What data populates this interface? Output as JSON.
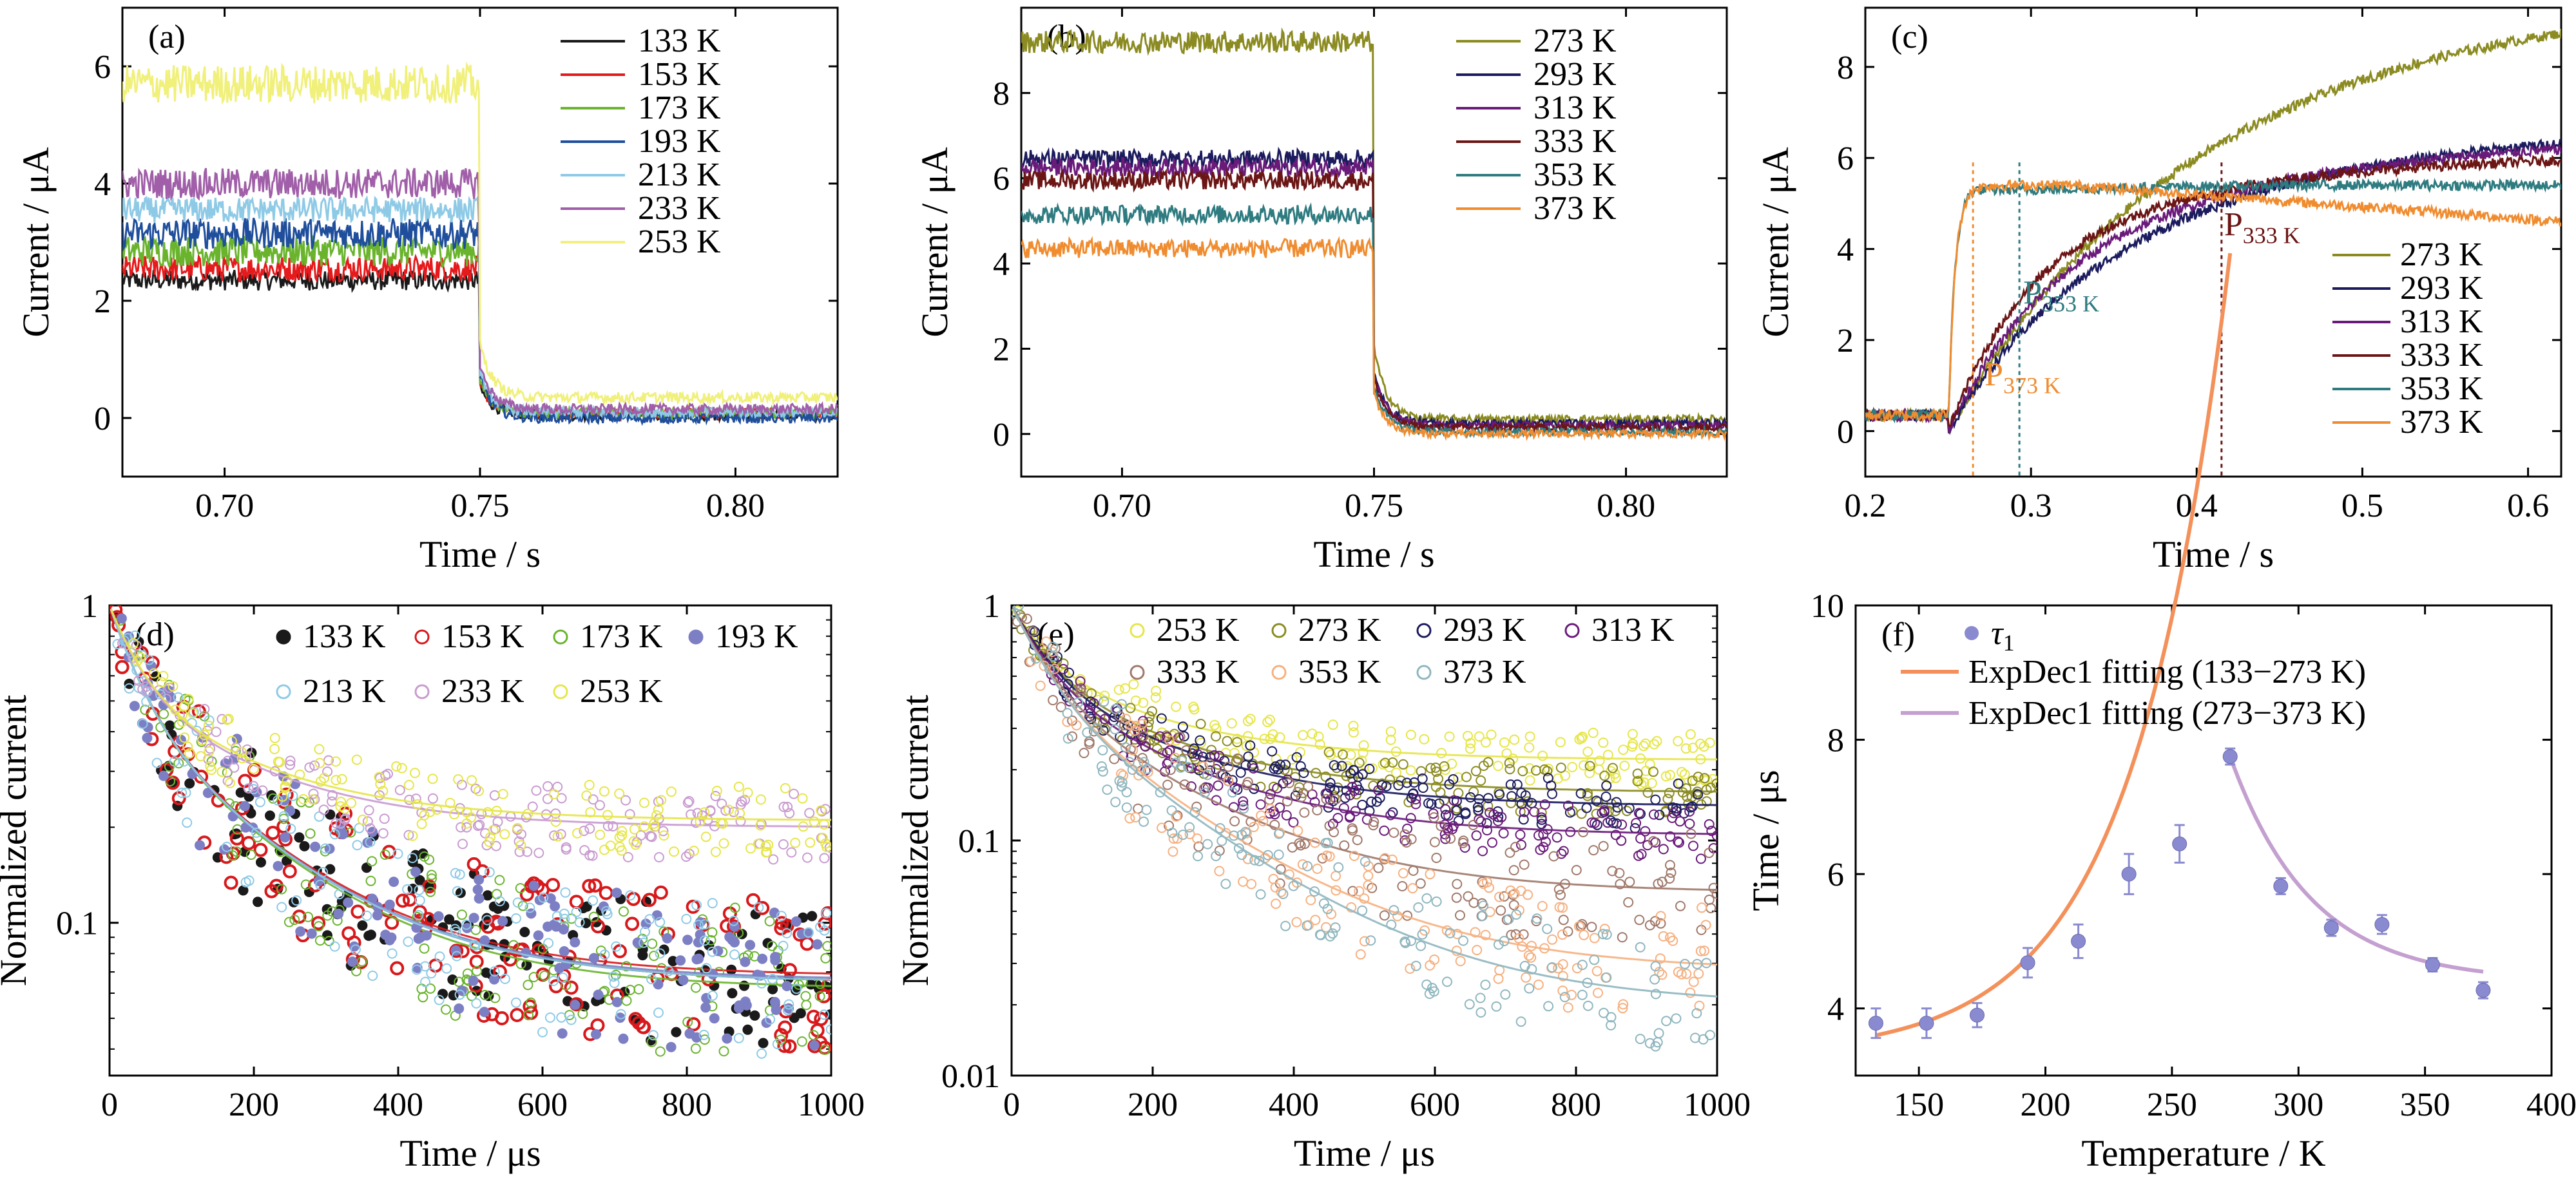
{
  "figure": {
    "panel_count": 6
  },
  "chart_data": [
    {
      "id": "a",
      "type": "line",
      "panel_label": "(a)",
      "xlabel": "Time / s",
      "ylabel": "Current / μA",
      "xlim": [
        0.68,
        0.82
      ],
      "ylim": [
        -1,
        7
      ],
      "x_ticks": [
        "0.70",
        "0.75",
        "0.80"
      ],
      "y_ticks": [
        "0",
        "2",
        "4",
        "6"
      ],
      "switch_time_s": 0.75,
      "series": [
        {
          "name": "133 K",
          "color": "#1a1a1a",
          "high": 2.35,
          "noise": 0.08,
          "tail": 0.05
        },
        {
          "name": "153 K",
          "color": "#e41a1c",
          "high": 2.55,
          "noise": 0.1,
          "tail": 0.08
        },
        {
          "name": "173 K",
          "color": "#6ab42d",
          "high": 2.85,
          "noise": 0.12,
          "tail": 0.08
        },
        {
          "name": "193 K",
          "color": "#1f4e9c",
          "high": 3.15,
          "noise": 0.12,
          "tail": 0.0
        },
        {
          "name": "213 K",
          "color": "#8ecae6",
          "high": 3.55,
          "noise": 0.1,
          "tail": 0.1
        },
        {
          "name": "233 K",
          "color": "#a05fa8",
          "high": 4.0,
          "noise": 0.12,
          "tail": 0.15
        },
        {
          "name": "253 K",
          "color": "#f0f07a",
          "high": 5.7,
          "noise": 0.15,
          "tail": 0.35
        }
      ]
    },
    {
      "id": "b",
      "type": "line",
      "panel_label": "(b)",
      "xlabel": "Time / s",
      "ylabel": "Current / μA",
      "xlim": [
        0.68,
        0.82
      ],
      "ylim": [
        -1,
        10
      ],
      "x_ticks": [
        "0.70",
        "0.75",
        "0.80"
      ],
      "y_ticks": [
        "0",
        "2",
        "4",
        "6",
        "8"
      ],
      "switch_time_s": 0.75,
      "series": [
        {
          "name": "273 K",
          "color": "#8b8b22",
          "high": 9.2,
          "noise": 0.12,
          "tail": 0.35
        },
        {
          "name": "293 K",
          "color": "#1b1b5e",
          "high": 6.45,
          "noise": 0.1,
          "tail": 0.25
        },
        {
          "name": "313 K",
          "color": "#6a1b7a",
          "high": 6.25,
          "noise": 0.1,
          "tail": 0.2
        },
        {
          "name": "333 K",
          "color": "#6b1515",
          "high": 5.95,
          "noise": 0.1,
          "tail": 0.15
        },
        {
          "name": "353 K",
          "color": "#2e7b80",
          "high": 5.15,
          "noise": 0.1,
          "tail": 0.05
        },
        {
          "name": "373 K",
          "color": "#f08c30",
          "high": 4.35,
          "noise": 0.1,
          "tail": 0.0
        }
      ]
    },
    {
      "id": "c",
      "type": "line",
      "panel_label": "(c)",
      "xlabel": "Time / s",
      "ylabel": "Current / μA",
      "xlim": [
        0.2,
        0.62
      ],
      "ylim": [
        -1,
        9.3
      ],
      "x_ticks": [
        "0.2",
        "0.3",
        "0.4",
        "0.5",
        "0.6"
      ],
      "y_ticks": [
        "0",
        "2",
        "4",
        "6",
        "8"
      ],
      "switch_time_s": 0.25,
      "baseline": 0.35,
      "series": [
        {
          "name": "273 K",
          "color": "#8b8b22",
          "end": 9.0
        },
        {
          "name": "293 K",
          "color": "#1b1b5e",
          "end": 6.35
        },
        {
          "name": "313 K",
          "color": "#6a1b7a",
          "end": 6.2
        },
        {
          "name": "333 K",
          "color": "#6b1515",
          "end": 5.95
        },
        {
          "name": "353 K",
          "color": "#2e7b80",
          "end": 5.5
        },
        {
          "name": "373 K",
          "color": "#f08c30",
          "end": 4.6
        }
      ],
      "annotations": [
        {
          "text": "P",
          "sub": "373 K",
          "x": 0.265,
          "color": "#f08c30"
        },
        {
          "text": "P",
          "sub": "353 K",
          "x": 0.293,
          "color": "#2e7b80"
        },
        {
          "text": "P",
          "sub": "333 K",
          "x": 0.415,
          "color": "#6b1515"
        }
      ]
    },
    {
      "id": "d",
      "type": "scatter",
      "panel_label": "(d)",
      "xlabel": "Time / μs",
      "ylabel": "Normalized current",
      "xlim": [
        0,
        1000
      ],
      "ylim": [
        0.033,
        1.0
      ],
      "yscale": "log",
      "x_ticks": [
        "0",
        "200",
        "400",
        "600",
        "800",
        "1000"
      ],
      "y_ticks": [
        {
          "v": 1,
          "label": "1"
        },
        {
          "v": 0.1,
          "label": "0.1"
        }
      ],
      "series": [
        {
          "name": "133 K",
          "color": "#1a1a1a",
          "marker": "filled",
          "plateau": 0.065
        },
        {
          "name": "153 K",
          "color": "#d7191c",
          "marker": "open-thick",
          "plateau": 0.068
        },
        {
          "name": "173 K",
          "color": "#6ab42d",
          "marker": "open",
          "plateau": 0.062
        },
        {
          "name": "193 K",
          "color": "#7d7fc4",
          "marker": "filled",
          "plateau": 0.066
        },
        {
          "name": "213 K",
          "color": "#8ecae6",
          "marker": "open",
          "plateau": 0.065
        },
        {
          "name": "233 K",
          "color": "#c99bd0",
          "marker": "open",
          "plateau": 0.2
        },
        {
          "name": "253 K",
          "color": "#e6e64a",
          "marker": "open",
          "plateau": 0.21
        }
      ]
    },
    {
      "id": "e",
      "type": "scatter",
      "panel_label": "(e)",
      "xlabel": "Time / μs",
      "ylabel": "Normalized current",
      "xlim": [
        0,
        1000
      ],
      "ylim": [
        0.01,
        1.0
      ],
      "yscale": "log",
      "x_ticks": [
        "0",
        "200",
        "400",
        "600",
        "800",
        "1000"
      ],
      "y_ticks": [
        {
          "v": 1,
          "label": "1"
        },
        {
          "v": 0.1,
          "label": "0.1"
        },
        {
          "v": 0.01,
          "label": "0.01"
        }
      ],
      "series": [
        {
          "name": "253 K",
          "color": "#e6e64a",
          "plateau": 0.22
        },
        {
          "name": "273 K",
          "color": "#8b8b22",
          "plateau": 0.16
        },
        {
          "name": "293 K",
          "color": "#1b1b5e",
          "plateau": 0.14
        },
        {
          "name": "313 K",
          "color": "#6a1b7a",
          "plateau": 0.105
        },
        {
          "name": "333 K",
          "color": "#a0786a",
          "plateau": 0.06
        },
        {
          "name": "353 K",
          "color": "#f6b080",
          "plateau": 0.028
        },
        {
          "name": "373 K",
          "color": "#8fb6bf",
          "plateau": 0.02
        }
      ]
    },
    {
      "id": "f",
      "type": "scatter",
      "panel_label": "(f)",
      "xlabel": "Temperature / K",
      "ylabel": "Time / μs",
      "xlim": [
        125,
        400
      ],
      "ylim": [
        3.0,
        10.0
      ],
      "x_ticks": [
        "150",
        "200",
        "250",
        "300",
        "350",
        "400"
      ],
      "y_ticks": [
        "4",
        "6",
        "8",
        "10"
      ],
      "legend": {
        "points": "τ1",
        "points_main": "τ",
        "points_sub": "1",
        "fit1": "ExpDec1 fitting (133−273 K)",
        "fit2": "ExpDec1 fitting (273−373 K)"
      },
      "fit1_color": "#f4905a",
      "fit2_color": "#c4a0d0",
      "point_color": "#8a8ad0",
      "points": [
        {
          "x": 133,
          "y": 3.78,
          "err": 0.22
        },
        {
          "x": 153,
          "y": 3.78,
          "err": 0.22
        },
        {
          "x": 173,
          "y": 3.9,
          "err": 0.18
        },
        {
          "x": 193,
          "y": 4.68,
          "err": 0.22
        },
        {
          "x": 213,
          "y": 5.0,
          "err": 0.25
        },
        {
          "x": 233,
          "y": 6.0,
          "err": 0.3
        },
        {
          "x": 253,
          "y": 6.45,
          "err": 0.28
        },
        {
          "x": 273,
          "y": 7.75,
          "err": 0.12
        },
        {
          "x": 293,
          "y": 5.82,
          "err": 0.12
        },
        {
          "x": 313,
          "y": 5.2,
          "err": 0.12
        },
        {
          "x": 333,
          "y": 5.25,
          "err": 0.14
        },
        {
          "x": 353,
          "y": 4.65,
          "err": 0.1
        },
        {
          "x": 373,
          "y": 4.27,
          "err": 0.12
        }
      ]
    }
  ]
}
